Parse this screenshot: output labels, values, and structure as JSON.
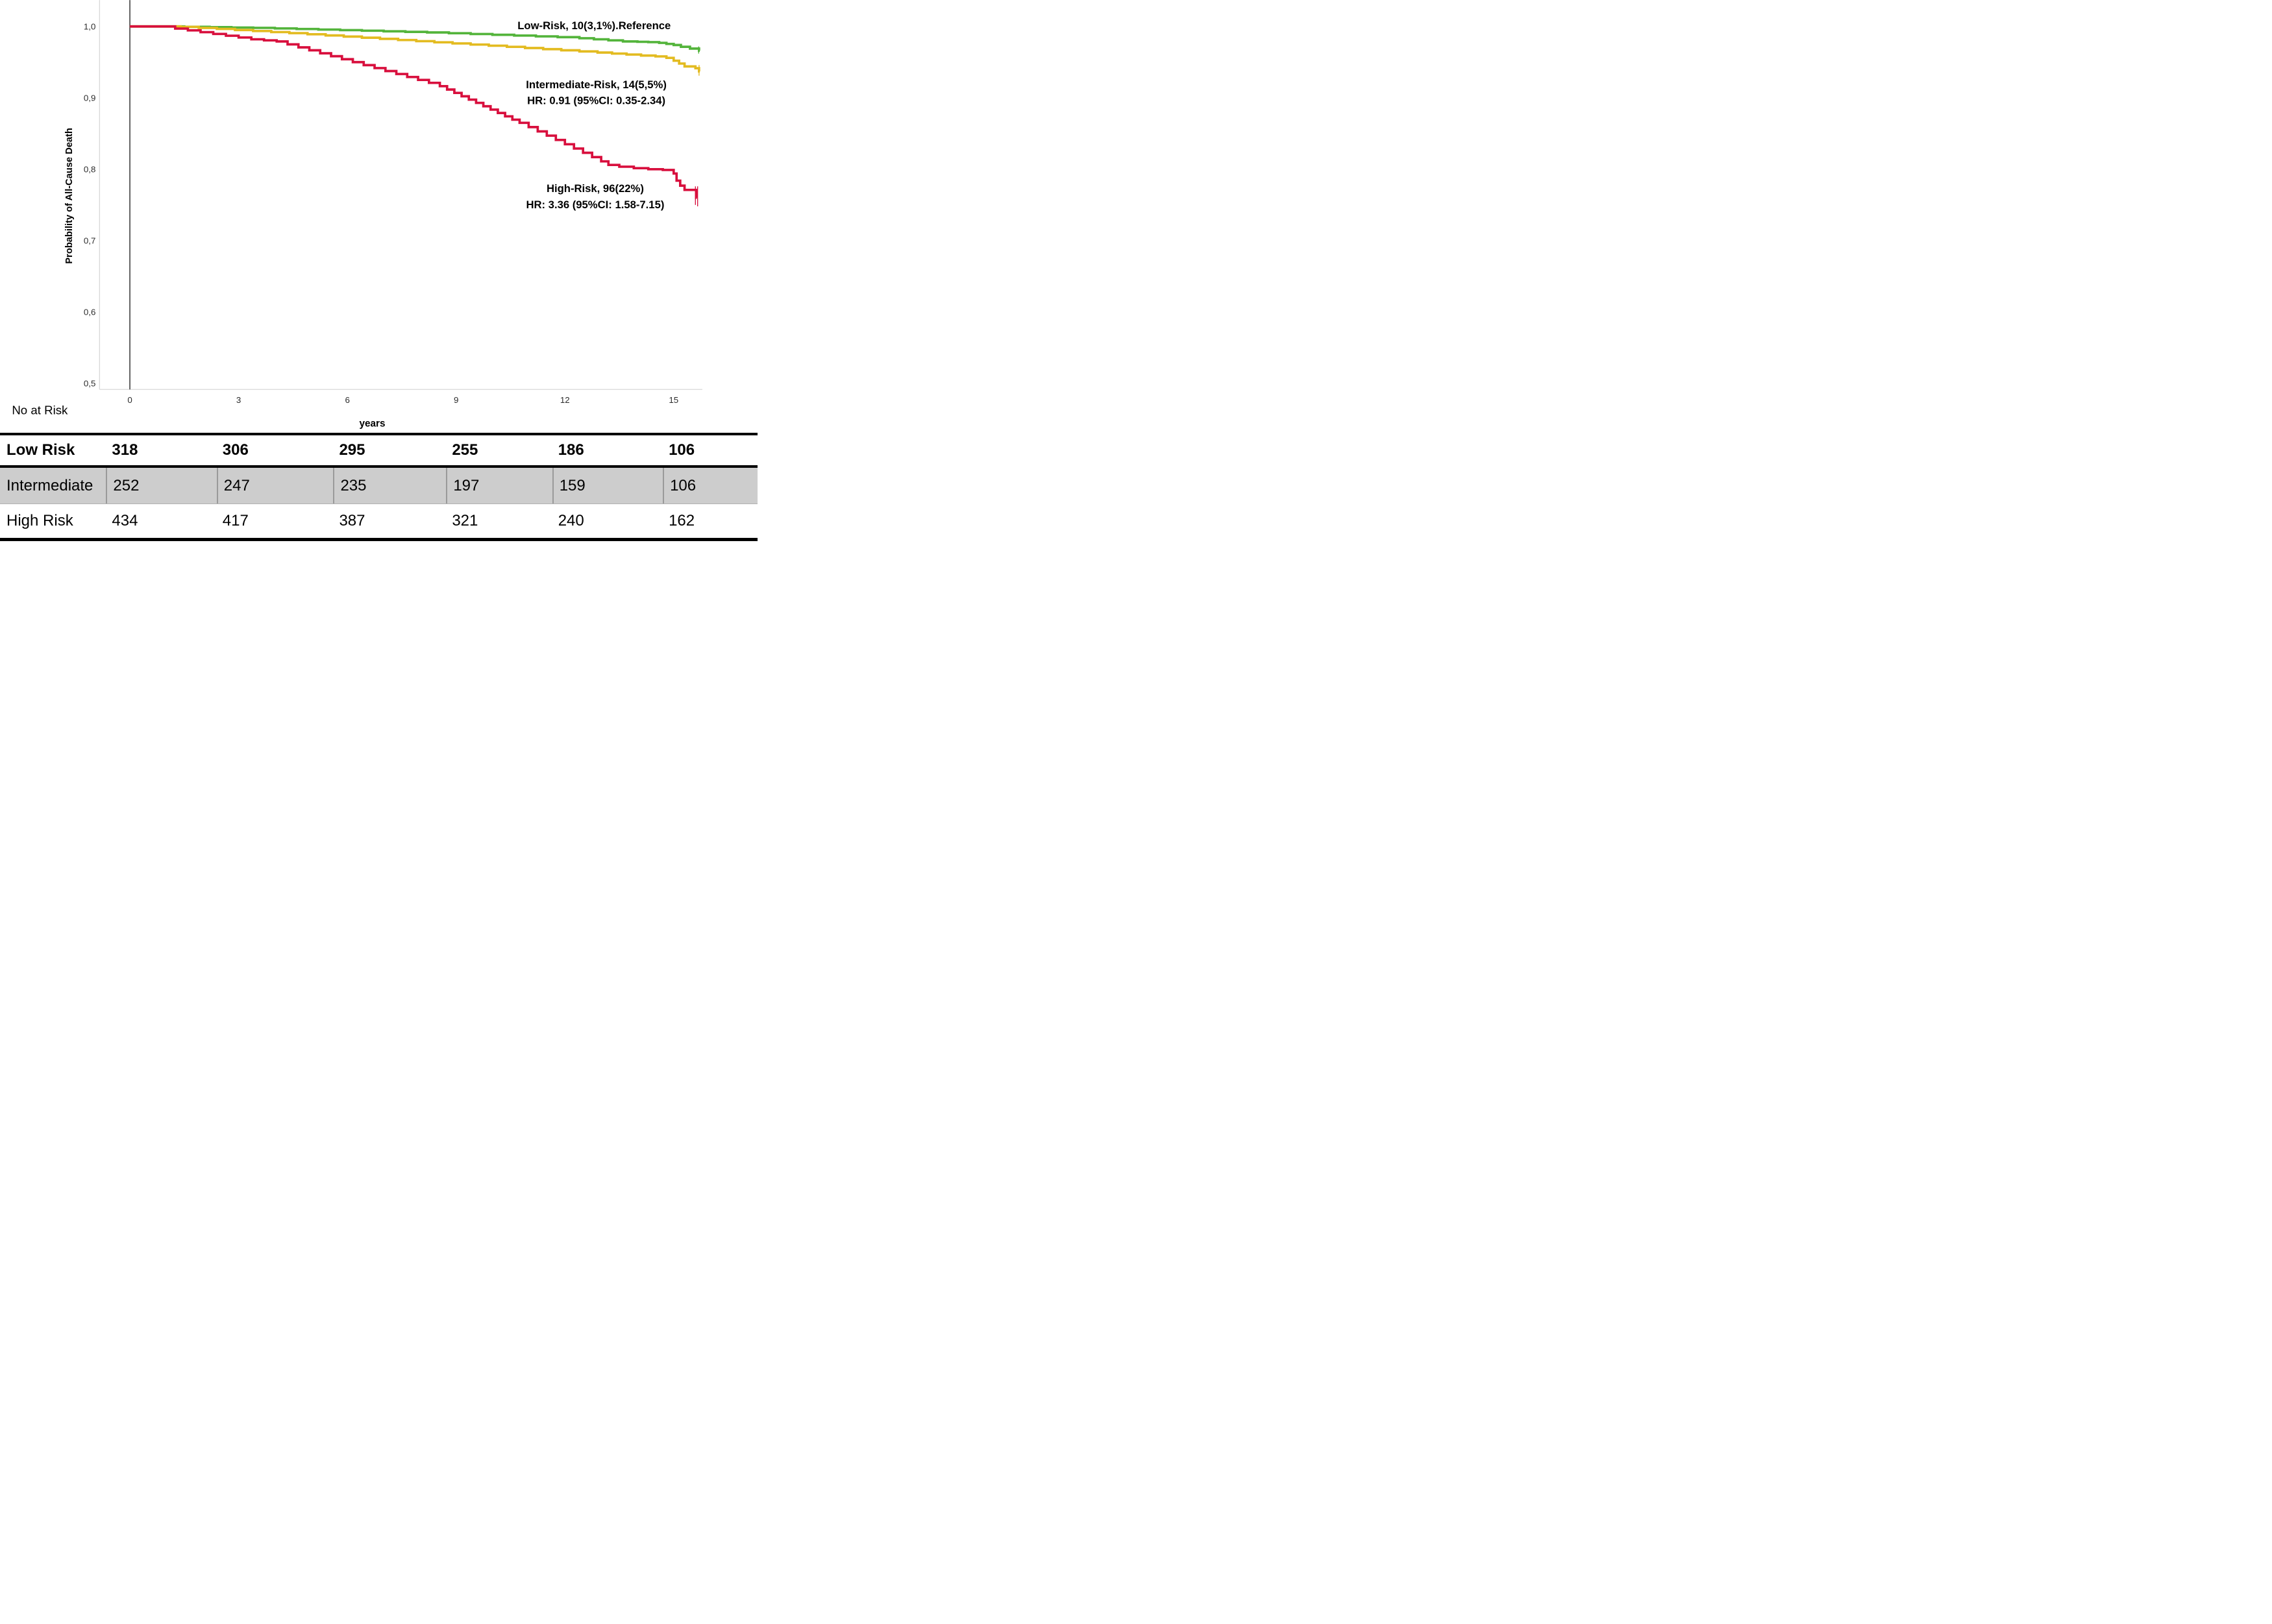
{
  "figure": {
    "no_at_risk_label": "No at Risk"
  },
  "chart_data": {
    "type": "line",
    "subtype": "kaplan-meier-step",
    "title": "",
    "xlabel": "years",
    "ylabel": "Probability of All-Cause Death",
    "xlim": [
      -0.85,
      15.85
    ],
    "ylim": [
      0.49,
      1.04
    ],
    "grid": false,
    "legend_position": "inline-annotations",
    "frame_color": "#d8d8d8",
    "axis_line_color": "#474747",
    "tick_text_color": "#2b2b2b",
    "x_ticks": [
      {
        "value": 0,
        "label": "0"
      },
      {
        "value": 3,
        "label": "3"
      },
      {
        "value": 6,
        "label": "6"
      },
      {
        "value": 9,
        "label": "9"
      },
      {
        "value": 12,
        "label": "12"
      },
      {
        "value": 15,
        "label": "15"
      }
    ],
    "y_ticks": [
      {
        "value": 1.0,
        "label": "1,0"
      },
      {
        "value": 0.9,
        "label": "0,9"
      },
      {
        "value": 0.8,
        "label": "0,8"
      },
      {
        "value": 0.7,
        "label": "0,7"
      },
      {
        "value": 0.6,
        "label": "0,6"
      },
      {
        "value": 0.5,
        "label": "0,5"
      }
    ],
    "series": [
      {
        "name": "Low-Risk",
        "color": "#53b43b",
        "end_t": 15.72,
        "points": [
          [
            0,
            1
          ],
          [
            1.5,
            0.9995
          ],
          [
            2.2,
            0.999
          ],
          [
            2.8,
            0.9985
          ],
          [
            3.4,
            0.998
          ],
          [
            4,
            0.9972
          ],
          [
            4.6,
            0.9964
          ],
          [
            5.2,
            0.9956
          ],
          [
            5.8,
            0.9948
          ],
          [
            6.4,
            0.994
          ],
          [
            7,
            0.9932
          ],
          [
            7.6,
            0.9924
          ],
          [
            8.2,
            0.9916
          ],
          [
            8.8,
            0.9905
          ],
          [
            9.4,
            0.9894
          ],
          [
            10,
            0.9883
          ],
          [
            10.6,
            0.9872
          ],
          [
            11.2,
            0.9861
          ],
          [
            11.8,
            0.985
          ],
          [
            12.4,
            0.9835
          ],
          [
            12.8,
            0.982
          ],
          [
            13.2,
            0.9805
          ],
          [
            13.6,
            0.979
          ],
          [
            14,
            0.9785
          ],
          [
            14.3,
            0.978
          ],
          [
            14.6,
            0.977
          ],
          [
            14.8,
            0.9755
          ],
          [
            15,
            0.974
          ],
          [
            15.2,
            0.9715
          ],
          [
            15.45,
            0.969
          ],
          [
            15.7,
            0.966
          ]
        ],
        "censor_marks": [
          {
            "t": 15.69,
            "p_from": 0.972,
            "p_to": 0.962
          }
        ]
      },
      {
        "name": "Intermediate-Risk",
        "color": "#e3bb20",
        "end_t": 15.72,
        "points": [
          [
            0,
            1
          ],
          [
            1.4,
            0.9993
          ],
          [
            1.9,
            0.9979
          ],
          [
            2.4,
            0.9965
          ],
          [
            2.9,
            0.995
          ],
          [
            3.4,
            0.9936
          ],
          [
            3.9,
            0.9921
          ],
          [
            4.4,
            0.9906
          ],
          [
            4.9,
            0.989
          ],
          [
            5.4,
            0.9874
          ],
          [
            5.9,
            0.9858
          ],
          [
            6.4,
            0.9842
          ],
          [
            6.9,
            0.9826
          ],
          [
            7.4,
            0.981
          ],
          [
            7.9,
            0.9794
          ],
          [
            8.4,
            0.9778
          ],
          [
            8.9,
            0.9762
          ],
          [
            9.4,
            0.9746
          ],
          [
            9.9,
            0.973
          ],
          [
            10.4,
            0.9714
          ],
          [
            10.9,
            0.9698
          ],
          [
            11.4,
            0.9682
          ],
          [
            11.9,
            0.9666
          ],
          [
            12.4,
            0.965
          ],
          [
            12.9,
            0.9634
          ],
          [
            13.3,
            0.962
          ],
          [
            13.7,
            0.9606
          ],
          [
            14.1,
            0.9592
          ],
          [
            14.5,
            0.958
          ],
          [
            14.8,
            0.956
          ],
          [
            15,
            0.952
          ],
          [
            15.15,
            0.948
          ],
          [
            15.3,
            0.944
          ],
          [
            15.6,
            0.9415
          ],
          [
            15.7,
            0.937
          ]
        ],
        "censor_marks": [
          {
            "t": 15.7,
            "p_from": 0.946,
            "p_to": 0.931
          }
        ]
      },
      {
        "name": "High-Risk",
        "color": "#d80f3d",
        "end_t": 15.64,
        "points": [
          [
            0,
            1
          ],
          [
            1.25,
            0.997
          ],
          [
            1.6,
            0.9945
          ],
          [
            1.95,
            0.992
          ],
          [
            2.3,
            0.9895
          ],
          [
            2.65,
            0.987
          ],
          [
            3,
            0.9845
          ],
          [
            3.35,
            0.982
          ],
          [
            3.7,
            0.9805
          ],
          [
            4.05,
            0.979
          ],
          [
            4.35,
            0.9749
          ],
          [
            4.65,
            0.9707
          ],
          [
            4.95,
            0.9666
          ],
          [
            5.25,
            0.9624
          ],
          [
            5.55,
            0.9583
          ],
          [
            5.85,
            0.9541
          ],
          [
            6.15,
            0.95
          ],
          [
            6.45,
            0.9458
          ],
          [
            6.75,
            0.9417
          ],
          [
            7.05,
            0.9375
          ],
          [
            7.35,
            0.9334
          ],
          [
            7.65,
            0.9292
          ],
          [
            7.95,
            0.9251
          ],
          [
            8.25,
            0.921
          ],
          [
            8.55,
            0.9163
          ],
          [
            8.75,
            0.9116
          ],
          [
            8.95,
            0.9069
          ],
          [
            9.15,
            0.9022
          ],
          [
            9.35,
            0.8975
          ],
          [
            9.55,
            0.8929
          ],
          [
            9.75,
            0.8882
          ],
          [
            9.95,
            0.8835
          ],
          [
            10.15,
            0.8788
          ],
          [
            10.35,
            0.8741
          ],
          [
            10.55,
            0.8694
          ],
          [
            10.75,
            0.865
          ],
          [
            11,
            0.859
          ],
          [
            11.25,
            0.853
          ],
          [
            11.5,
            0.847
          ],
          [
            11.75,
            0.841
          ],
          [
            12,
            0.835
          ],
          [
            12.25,
            0.829
          ],
          [
            12.5,
            0.823
          ],
          [
            12.75,
            0.817
          ],
          [
            13,
            0.811
          ],
          [
            13.2,
            0.806
          ],
          [
            13.5,
            0.8035
          ],
          [
            13.9,
            0.8015
          ],
          [
            14.3,
            0.8
          ],
          [
            14.7,
            0.799
          ],
          [
            15,
            0.794
          ],
          [
            15.08,
            0.784
          ],
          [
            15.18,
            0.777
          ],
          [
            15.3,
            0.771
          ],
          [
            15.62,
            0.76
          ]
        ],
        "censor_marks": [
          {
            "t": 15.6,
            "p_from": 0.776,
            "p_to": 0.75
          },
          {
            "t": 15.66,
            "p_from": 0.776,
            "p_to": 0.748
          }
        ]
      }
    ],
    "annotations": [
      {
        "series": "Low-Risk",
        "x": 2745,
        "y": 135,
        "line_gap": 73,
        "lines": [
          "Low-Risk, 10(3,1%).Reference"
        ]
      },
      {
        "series": "Intermediate-Risk",
        "x": 2755,
        "y": 408,
        "line_gap": 73,
        "lines": [
          "Intermediate-Risk, 14(5,5%)",
          "HR: 0.91 (95%CI: 0.35-2.34)"
        ]
      },
      {
        "series": "High-Risk",
        "x": 2750,
        "y": 888,
        "line_gap": 74,
        "lines": [
          "High-Risk, 96(22%)",
          "HR: 3.36 (95%CI: 1.58-7.15)"
        ]
      }
    ]
  },
  "risk_table": {
    "rows": [
      {
        "label": "Low Risk",
        "values": [
          "318",
          "306",
          "295",
          "255",
          "186",
          "106"
        ],
        "bold": true,
        "shaded": false
      },
      {
        "label": "Intermediate",
        "values": [
          "252",
          "247",
          "235",
          "197",
          "159",
          "106"
        ],
        "bold": false,
        "shaded": true
      },
      {
        "label": "High Risk",
        "values": [
          "434",
          "417",
          "387",
          "321",
          "240",
          "162"
        ],
        "bold": false,
        "shaded": false
      }
    ]
  }
}
